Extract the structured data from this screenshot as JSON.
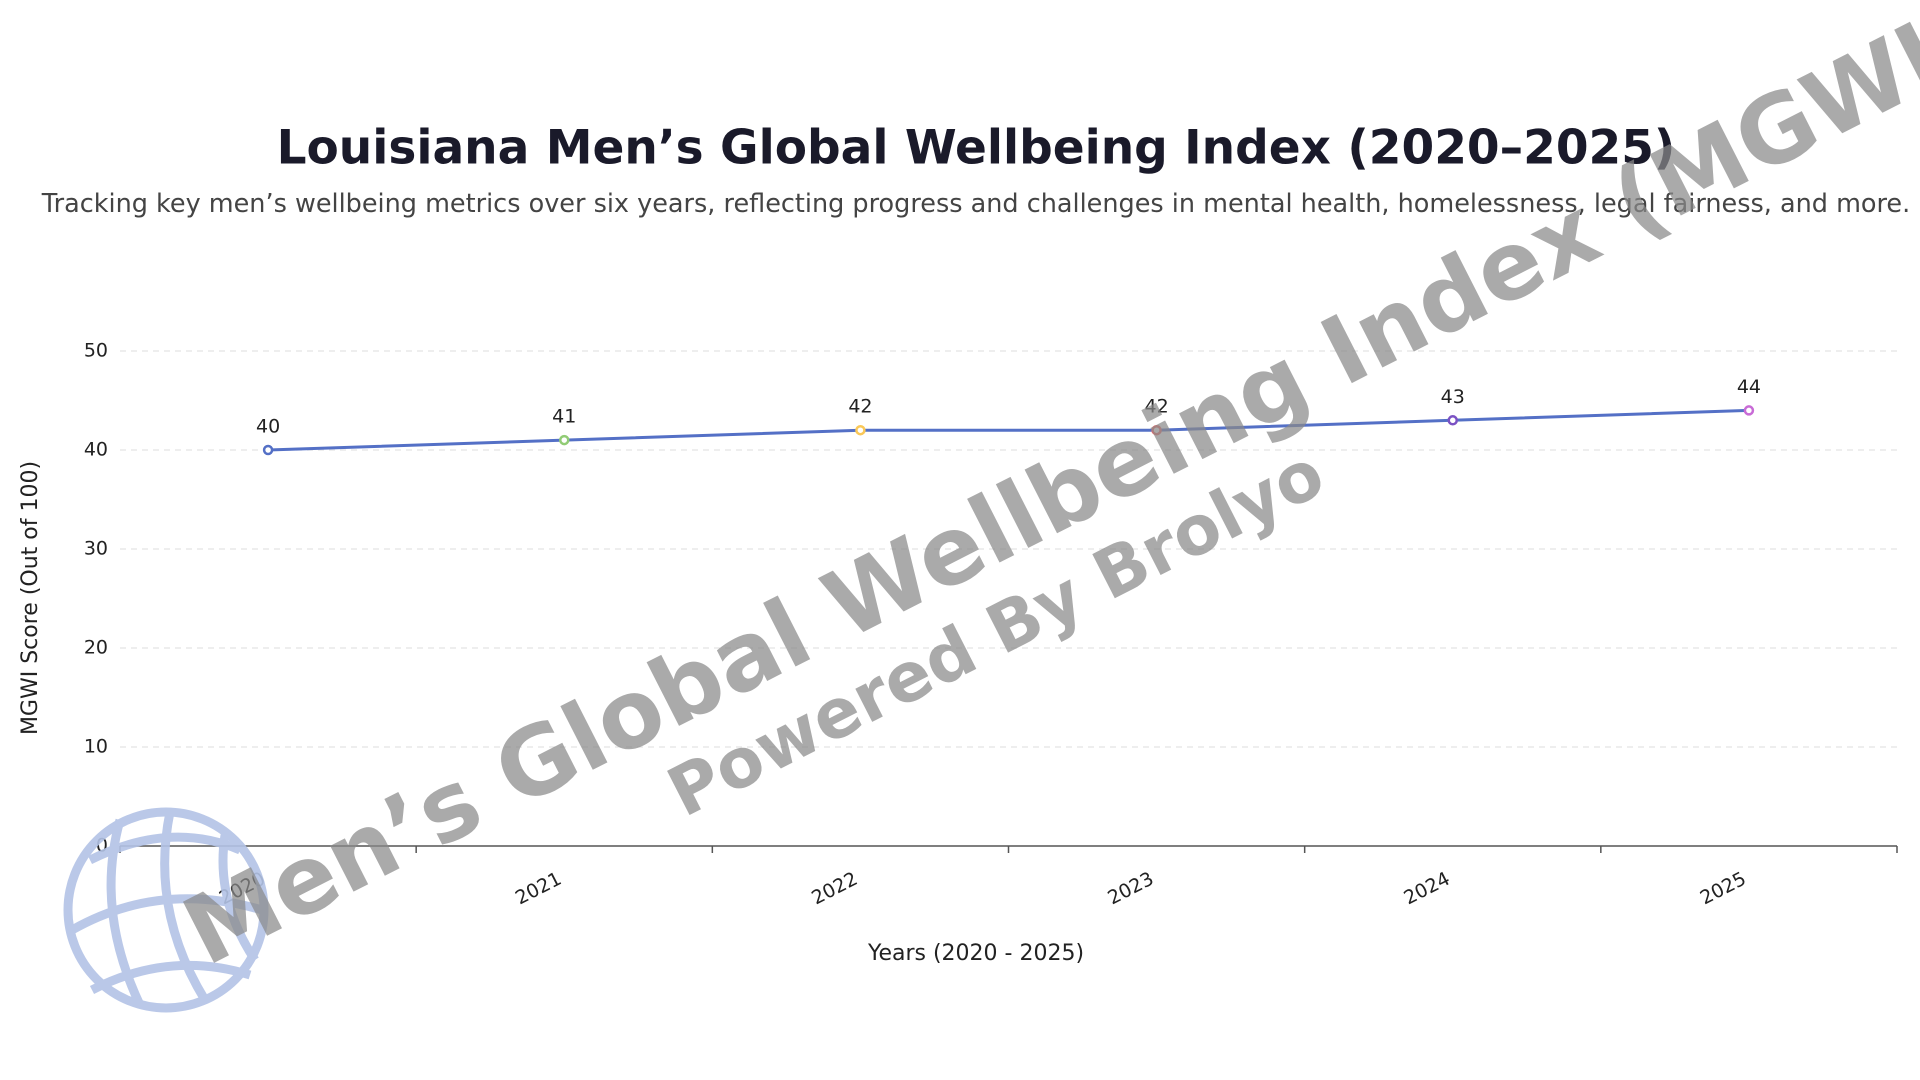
{
  "chart_data": {
    "type": "line",
    "title": "Louisiana Men’s Global Wellbeing Index (2020–2025)",
    "subtitle": "Tracking key men’s wellbeing metrics over six years, reflecting progress and challenges in mental health, homelessness, legal fairness, and more.",
    "x_label": "Years (2020 - 2025)",
    "y_label": "MGWI Score (Out of 100)",
    "categories": [
      "2020",
      "2021",
      "2022",
      "2023",
      "2024",
      "2025"
    ],
    "series": [
      {
        "color": "#5470c6",
        "values": [
          40,
          41,
          42,
          42,
          43,
          44
        ],
        "point_colors": [
          "#5470c6",
          "#91cc75",
          "#fac858",
          "#ee6666",
          "#7b52c4",
          "#c86bd6"
        ]
      }
    ],
    "ylim": [
      0,
      50
    ],
    "yticks": [
      0,
      10,
      20,
      30,
      40,
      50
    ],
    "grid": true,
    "annotations": [
      "Men’s Global Wellbeing Index (MGWI)",
      "Powered By Brolyo"
    ]
  }
}
